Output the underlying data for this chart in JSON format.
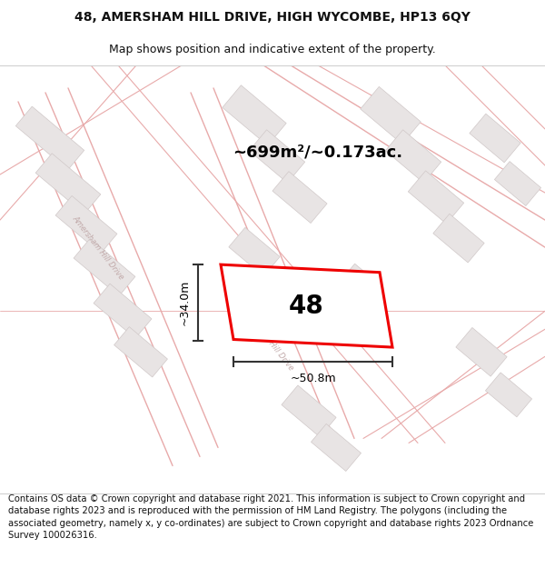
{
  "title_line1": "48, AMERSHAM HILL DRIVE, HIGH WYCOMBE, HP13 6QY",
  "title_line2": "Map shows position and indicative extent of the property.",
  "area_label": "~699m²/~0.173ac.",
  "number_label": "48",
  "width_label": "~50.8m",
  "height_label": "~34.0m",
  "footer_text": "Contains OS data © Crown copyright and database right 2021. This information is subject to Crown copyright and database rights 2023 and is reproduced with the permission of HM Land Registry. The polygons (including the associated geometry, namely x, y co-ordinates) are subject to Crown copyright and database rights 2023 Ordnance Survey 100026316.",
  "map_bg": "#faf8f8",
  "road_line_color": "#e8aaaa",
  "building_face": "#e8e4e4",
  "building_edge": "#d0c8c8",
  "highlight_color": "#ee0000",
  "highlight_fill": "#ffffff",
  "dim_color": "#333333",
  "road_label_color": "#c0a8a8",
  "title_fs": 10,
  "subtitle_fs": 9,
  "area_fs": 13,
  "number_fs": 20,
  "dim_fs": 9,
  "footer_fs": 7.2
}
